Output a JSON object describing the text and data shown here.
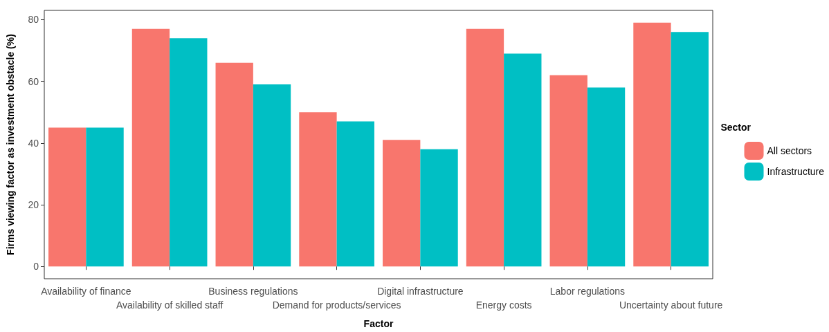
{
  "chart_data": {
    "type": "bar",
    "xlabel": "Factor",
    "ylabel": "Firms viewing factor as investment obstacle (%)",
    "legend_title": "Sector",
    "categories": [
      "Availability of finance",
      "Availability of skilled staff",
      "Business regulations",
      "Demand for products/services",
      "Digital infrastructure",
      "Energy costs",
      "Labor regulations",
      "Uncertainty about future"
    ],
    "series": [
      {
        "name": "All sectors",
        "color": "#f8766d",
        "values": [
          45,
          77,
          66,
          50,
          41,
          77,
          62,
          79
        ]
      },
      {
        "name": "Infrastructure",
        "color": "#00bfc4",
        "values": [
          45,
          74,
          59,
          47,
          38,
          69,
          58,
          76
        ]
      }
    ],
    "ylim": [
      -4,
      83
    ],
    "yticks": [
      0,
      20,
      40,
      60,
      80
    ],
    "grid": false,
    "legend": "right"
  }
}
